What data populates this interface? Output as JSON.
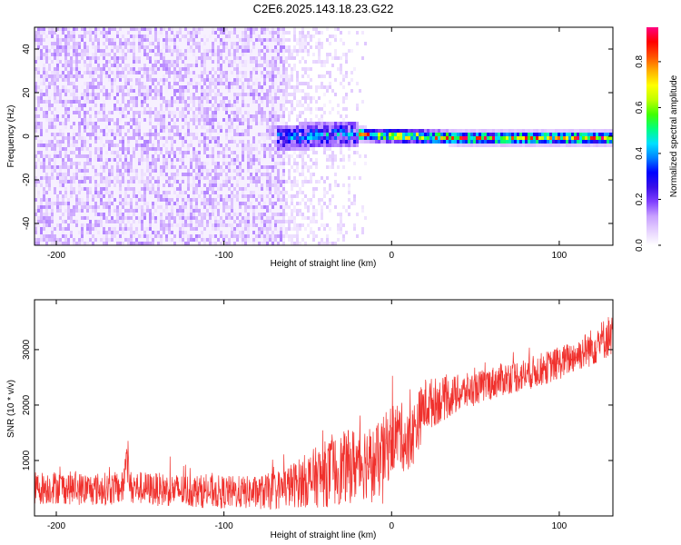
{
  "title": "C2E6.2025.143.18.23.G22",
  "colors": {
    "snr_line": "#f0302c",
    "frame": "#000000",
    "background": "#ffffff",
    "colormap": [
      "#ffffff",
      "#e6d2ff",
      "#c8a0ff",
      "#8040ff",
      "#3a10e8",
      "#0000ff",
      "#0080ff",
      "#00e0ff",
      "#00ff80",
      "#40ff00",
      "#c0ff00",
      "#ffff00",
      "#ffb000",
      "#ff5000",
      "#ff0000",
      "#ff0080"
    ]
  },
  "chart_data": [
    {
      "type": "heatmap",
      "title": "C2E6.2025.143.18.23.G22",
      "xlabel": "Height of straight line (km)",
      "ylabel": "Frequency (Hz)",
      "xlim": [
        -213,
        132
      ],
      "ylim": [
        -50,
        50
      ],
      "x_ticks": [
        -200,
        -100,
        0,
        100
      ],
      "y_ticks": [
        -40,
        -20,
        0,
        20,
        40
      ],
      "x_tick_labels": [
        "-200",
        "-100",
        "0",
        "100"
      ],
      "y_tick_labels": [
        "-40",
        "-20",
        "0",
        "20",
        "40"
      ],
      "grid": false,
      "colorbar": {
        "label": "Normalized spectral amplitude",
        "range": [
          0,
          0.95
        ],
        "ticks": [
          0.0,
          0.2,
          0.4,
          0.6,
          0.8
        ],
        "tick_labels": [
          "0.0",
          "0.2",
          "0.4",
          "0.6",
          "0.8"
        ],
        "placement": "right"
      },
      "regions": [
        {
          "x_range": [
            -213,
            -65
          ],
          "freq_range": [
            -50,
            50
          ],
          "amplitude": [
            0.02,
            0.15
          ],
          "description_values": "uniform noise"
        },
        {
          "x_range": [
            -65,
            -15
          ],
          "freq_range": [
            -50,
            50
          ],
          "amplitude": [
            0.0,
            0.08
          ]
        },
        {
          "x_range": [
            -70,
            -20
          ],
          "freq_range": [
            -5,
            6
          ],
          "amplitude": [
            0.15,
            0.5
          ]
        },
        {
          "x_range": [
            -20,
            132
          ],
          "freq_range": [
            -3,
            3
          ],
          "amplitude": [
            0.25,
            0.9
          ]
        }
      ],
      "signal_track": {
        "x": [
          -70,
          -50,
          -30,
          -15,
          0,
          20,
          40,
          60,
          80,
          100,
          132
        ],
        "frequency": [
          0,
          1,
          2,
          1.5,
          1,
          0.5,
          0,
          0,
          0,
          0,
          0
        ]
      }
    },
    {
      "type": "line",
      "xlabel": "Height of straight line (km)",
      "ylabel": "SNR (10 * v/v)",
      "xlim": [
        -213,
        132
      ],
      "ylim": [
        0,
        3900
      ],
      "x_ticks": [
        -200,
        -100,
        0,
        100
      ],
      "y_ticks": [
        1000,
        2000,
        3000
      ],
      "x_tick_labels": [
        "-200",
        "-100",
        "0",
        "100"
      ],
      "y_tick_labels": [
        "1000",
        "2000",
        "3000"
      ],
      "grid": false,
      "series": [
        {
          "x": [
            -213,
            -200,
            -180,
            -160,
            -158,
            -156,
            -140,
            -120,
            -100,
            -80,
            -70,
            -60,
            -50,
            -40,
            -30,
            -20,
            -15,
            -10,
            -5,
            0,
            5,
            10,
            15,
            20,
            30,
            40,
            50,
            60,
            70,
            80,
            90,
            100,
            110,
            120,
            132
          ],
          "y": [
            500,
            520,
            480,
            500,
            1200,
            520,
            480,
            450,
            430,
            420,
            450,
            550,
            650,
            750,
            850,
            950,
            1000,
            900,
            1100,
            1400,
            1500,
            1250,
            1650,
            2000,
            2100,
            2200,
            2300,
            2400,
            2500,
            2550,
            2650,
            2750,
            2900,
            3050,
            3300
          ],
          "noise_amplitude": [
            300,
            300,
            300,
            300,
            100,
            300,
            300,
            300,
            300,
            300,
            350,
            400,
            500,
            600,
            650,
            700,
            700,
            700,
            700,
            650,
            600,
            600,
            550,
            500,
            400,
            350,
            300,
            300,
            300,
            300,
            300,
            300,
            300,
            350,
            400
          ]
        }
      ]
    }
  ]
}
